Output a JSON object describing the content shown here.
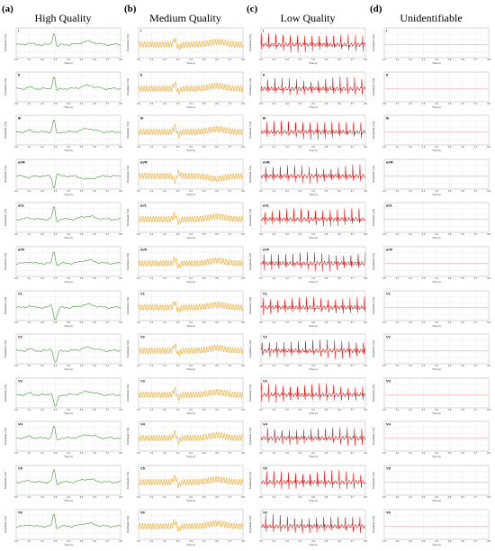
{
  "columns": [
    {
      "label": "(a)",
      "title": "High Quality",
      "color": "#2e8b1e",
      "kind": "high"
    },
    {
      "label": "(b)",
      "title": "Medium Quality",
      "color": "#f2a31b",
      "kind": "medium"
    },
    {
      "label": "(c)",
      "title": "Low Quality",
      "color": "#e01010",
      "kind": "low"
    },
    {
      "label": "(d)",
      "title": "Unidentifiable",
      "color": "#f0a0a0",
      "kind": "flat"
    }
  ],
  "leads": [
    "I",
    "II",
    "III",
    "aVR",
    "aVL",
    "aVF",
    "V1",
    "V2",
    "V3",
    "V4",
    "V5",
    "V6"
  ],
  "axis": {
    "xlabel": "Time (s)",
    "ylabel": "Amplitude (mV)",
    "xticks": [
      "0.0",
      "0.1",
      "0.2",
      "0.3",
      "0.4",
      "0.5",
      "0.6",
      "0.7",
      "0.8"
    ]
  },
  "chart_data": {
    "type": "line",
    "panels": "12 ECG leads x 4 signal quality classes",
    "x_range": [
      0,
      0.8
    ],
    "grid": true
  }
}
